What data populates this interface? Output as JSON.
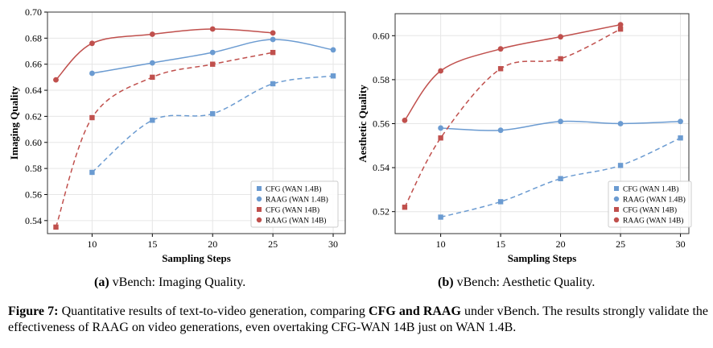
{
  "chart_data": [
    {
      "type": "line",
      "xlabel": "Sampling Steps",
      "ylabel": "Imaging Quality",
      "xticks": [
        10,
        15,
        20,
        25,
        30
      ],
      "ylim": [
        0.53,
        0.7
      ],
      "yticks": [
        0.54,
        0.56,
        0.58,
        0.6,
        0.62,
        0.64,
        0.66,
        0.68,
        0.7
      ],
      "ytick_labels": [
        "0.54",
        "0.56",
        "0.58",
        "0.60",
        "0.62",
        "0.64",
        "0.66",
        "0.68",
        "0.70"
      ],
      "grid": true,
      "legend_position": "bottom-right",
      "series": [
        {
          "name": "CFG (WAN 1.4B)",
          "color": "#6b9bd1",
          "marker": "square",
          "dash": true,
          "x": [
            10,
            15,
            20,
            25,
            30
          ],
          "y": [
            0.577,
            0.617,
            0.622,
            0.645,
            0.651
          ]
        },
        {
          "name": "RAAG (WAN 1.4B)",
          "color": "#6b9bd1",
          "marker": "circle",
          "dash": false,
          "x": [
            10,
            15,
            20,
            25,
            30
          ],
          "y": [
            0.653,
            0.661,
            0.669,
            0.679,
            0.671
          ]
        },
        {
          "name": "CFG (WAN 14B)",
          "color": "#c0504d",
          "marker": "square",
          "dash": true,
          "x": [
            7,
            10,
            15,
            20,
            25
          ],
          "y": [
            0.535,
            0.619,
            0.65,
            0.66,
            0.669
          ]
        },
        {
          "name": "RAAG (WAN 14B)",
          "color": "#c0504d",
          "marker": "circle",
          "dash": false,
          "x": [
            7,
            10,
            15,
            20,
            25
          ],
          "y": [
            0.648,
            0.676,
            0.683,
            0.687,
            0.684
          ]
        }
      ]
    },
    {
      "type": "line",
      "xlabel": "Sampling Steps",
      "ylabel": "Aesthetic Quality",
      "xticks": [
        10,
        15,
        20,
        25,
        30
      ],
      "ylim": [
        0.51,
        0.61
      ],
      "yticks": [
        0.52,
        0.54,
        0.56,
        0.58,
        0.6
      ],
      "ytick_labels": [
        "0.52",
        "0.54",
        "0.56",
        "0.58",
        "0.60"
      ],
      "grid": true,
      "legend_position": "bottom-right",
      "series": [
        {
          "name": "CFG (WAN 1.4B)",
          "color": "#6b9bd1",
          "marker": "square",
          "dash": true,
          "x": [
            10,
            15,
            20,
            25,
            30
          ],
          "y": [
            0.5175,
            0.5245,
            0.535,
            0.541,
            0.5535
          ]
        },
        {
          "name": "RAAG (WAN 1.4B)",
          "color": "#6b9bd1",
          "marker": "circle",
          "dash": false,
          "x": [
            10,
            15,
            20,
            25,
            30
          ],
          "y": [
            0.558,
            0.557,
            0.561,
            0.56,
            0.561
          ]
        },
        {
          "name": "CFG (WAN 14B)",
          "color": "#c0504d",
          "marker": "square",
          "dash": true,
          "x": [
            7,
            10,
            15,
            20,
            25
          ],
          "y": [
            0.522,
            0.5535,
            0.585,
            0.5895,
            0.603
          ]
        },
        {
          "name": "RAAG (WAN 14B)",
          "color": "#c0504d",
          "marker": "circle",
          "dash": false,
          "x": [
            7,
            10,
            15,
            20,
            25
          ],
          "y": [
            0.5615,
            0.584,
            0.594,
            0.5995,
            0.605
          ]
        }
      ]
    }
  ],
  "subcaptions": [
    {
      "label": "(a)",
      "text": " vBench: Imaging Quality."
    },
    {
      "label": "(b)",
      "text": " vBench: Aesthetic Quality."
    }
  ],
  "caption": {
    "label": "Figure 7:",
    "part1": " Quantitative results of text-to-video generation, comparing ",
    "bold": "CFG and RAAG",
    "part2": " under vBench. The results strongly validate the effectiveness of RAAG on video generations, even overtaking CFG-WAN 14B just on WAN 1.4B."
  }
}
